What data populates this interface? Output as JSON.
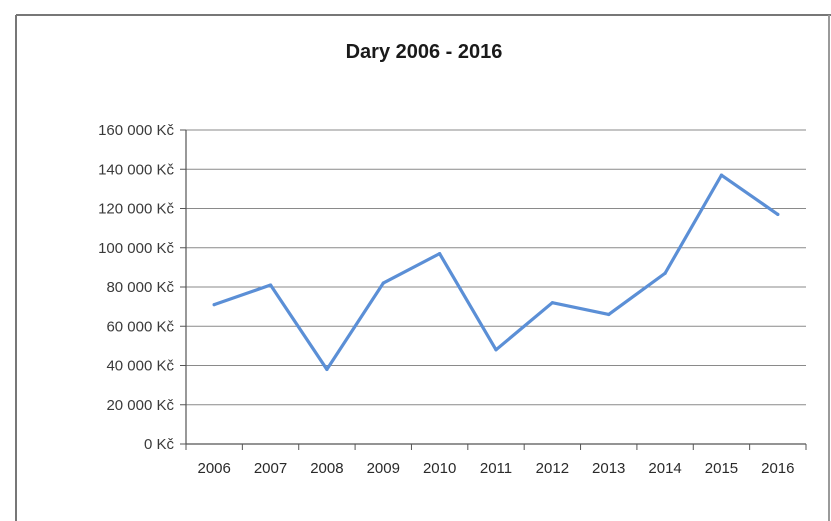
{
  "chart_data": {
    "type": "line",
    "title": "Dary 2006 - 2016",
    "xlabel": "",
    "ylabel": "",
    "categories": [
      "2006",
      "2007",
      "2008",
      "2009",
      "2010",
      "2011",
      "2012",
      "2013",
      "2014",
      "2015",
      "2016"
    ],
    "series": [
      {
        "values": [
          71000,
          81000,
          38000,
          82000,
          97000,
          48000,
          72000,
          66000,
          87000,
          137000,
          117000
        ],
        "color": "#5b8fd6"
      }
    ],
    "ylim": [
      0,
      160000
    ],
    "y_ticks": [
      {
        "value": 0,
        "label": "0 Kč"
      },
      {
        "value": 20000,
        "label": "20 000 Kč"
      },
      {
        "value": 40000,
        "label": "40 000 Kč"
      },
      {
        "value": 60000,
        "label": "60 000 Kč"
      },
      {
        "value": 80000,
        "label": "80 000 Kč"
      },
      {
        "value": 100000,
        "label": "100 000 Kč"
      },
      {
        "value": 120000,
        "label": "120 000 Kč"
      },
      {
        "value": 140000,
        "label": "140 000 Kč"
      },
      {
        "value": 160000,
        "label": "160 000 Kč"
      }
    ],
    "grid": true,
    "legend": "none"
  }
}
